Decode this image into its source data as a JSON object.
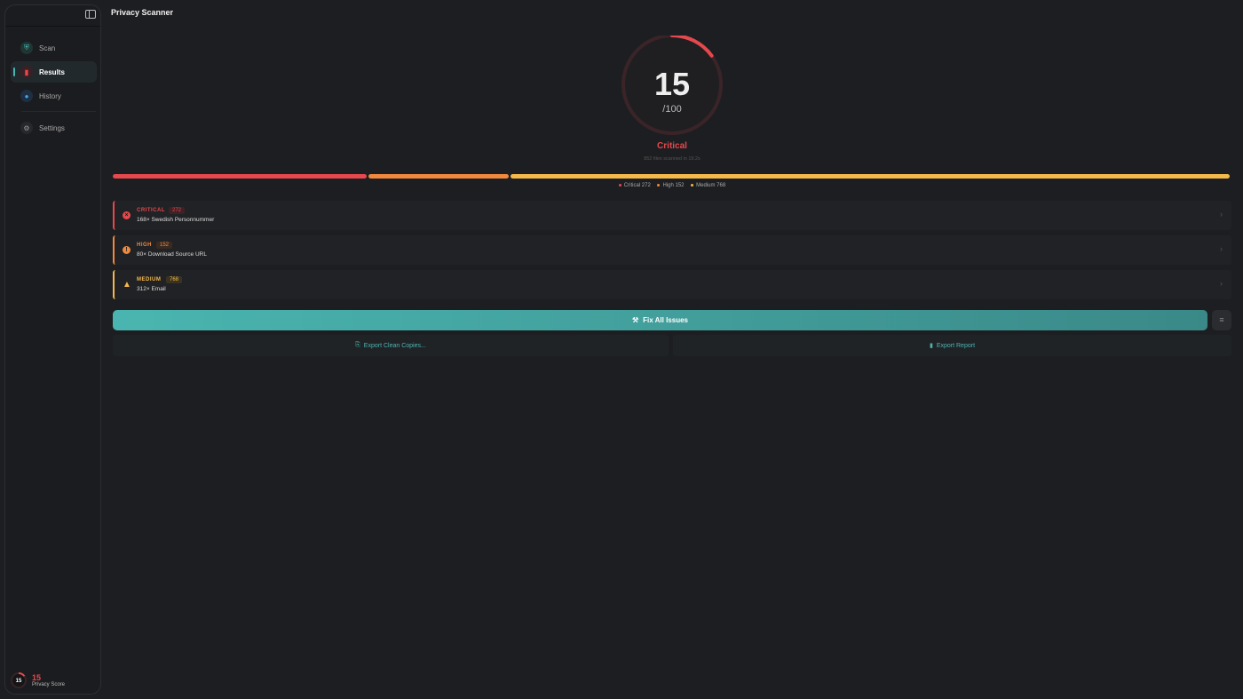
{
  "app": {
    "title": "Privacy Scanner"
  },
  "sidebar": {
    "items": [
      {
        "label": "Scan",
        "icon": "shield-icon"
      },
      {
        "label": "Results",
        "icon": "chart-icon",
        "active": true
      },
      {
        "label": "History",
        "icon": "clock-icon"
      },
      {
        "label": "Settings",
        "icon": "gear-icon"
      }
    ],
    "footer": {
      "score": "15",
      "label": "Privacy Score"
    }
  },
  "summary": {
    "score": "15",
    "max": "/100",
    "score_fraction": 0.15,
    "rating": "Critical",
    "files_text": "852 files scanned in 19.2s"
  },
  "breakdown": {
    "legend": [
      {
        "label": "Critical 272",
        "count": 272,
        "color": "#e5484d"
      },
      {
        "label": "High 152",
        "count": 152,
        "color": "#f0883e"
      },
      {
        "label": "Medium 768",
        "count": 768,
        "color": "#f5b94a"
      }
    ]
  },
  "findings": [
    {
      "severity": "CRITICAL",
      "count": "272",
      "description": "168× Swedish Personnummer",
      "color": "#e5484d",
      "icon": "x-circle-icon"
    },
    {
      "severity": "HIGH",
      "count": "152",
      "description": "80× Download Source URL",
      "color": "#f0883e",
      "icon": "exclamation-icon"
    },
    {
      "severity": "MEDIUM",
      "count": "768",
      "description": "312× Email",
      "color": "#f5b94a",
      "icon": "warning-icon"
    }
  ],
  "actions": {
    "fix_all": "Fix All Issues",
    "export_clean": "Export Clean Copies...",
    "export_report": "Export Report"
  }
}
